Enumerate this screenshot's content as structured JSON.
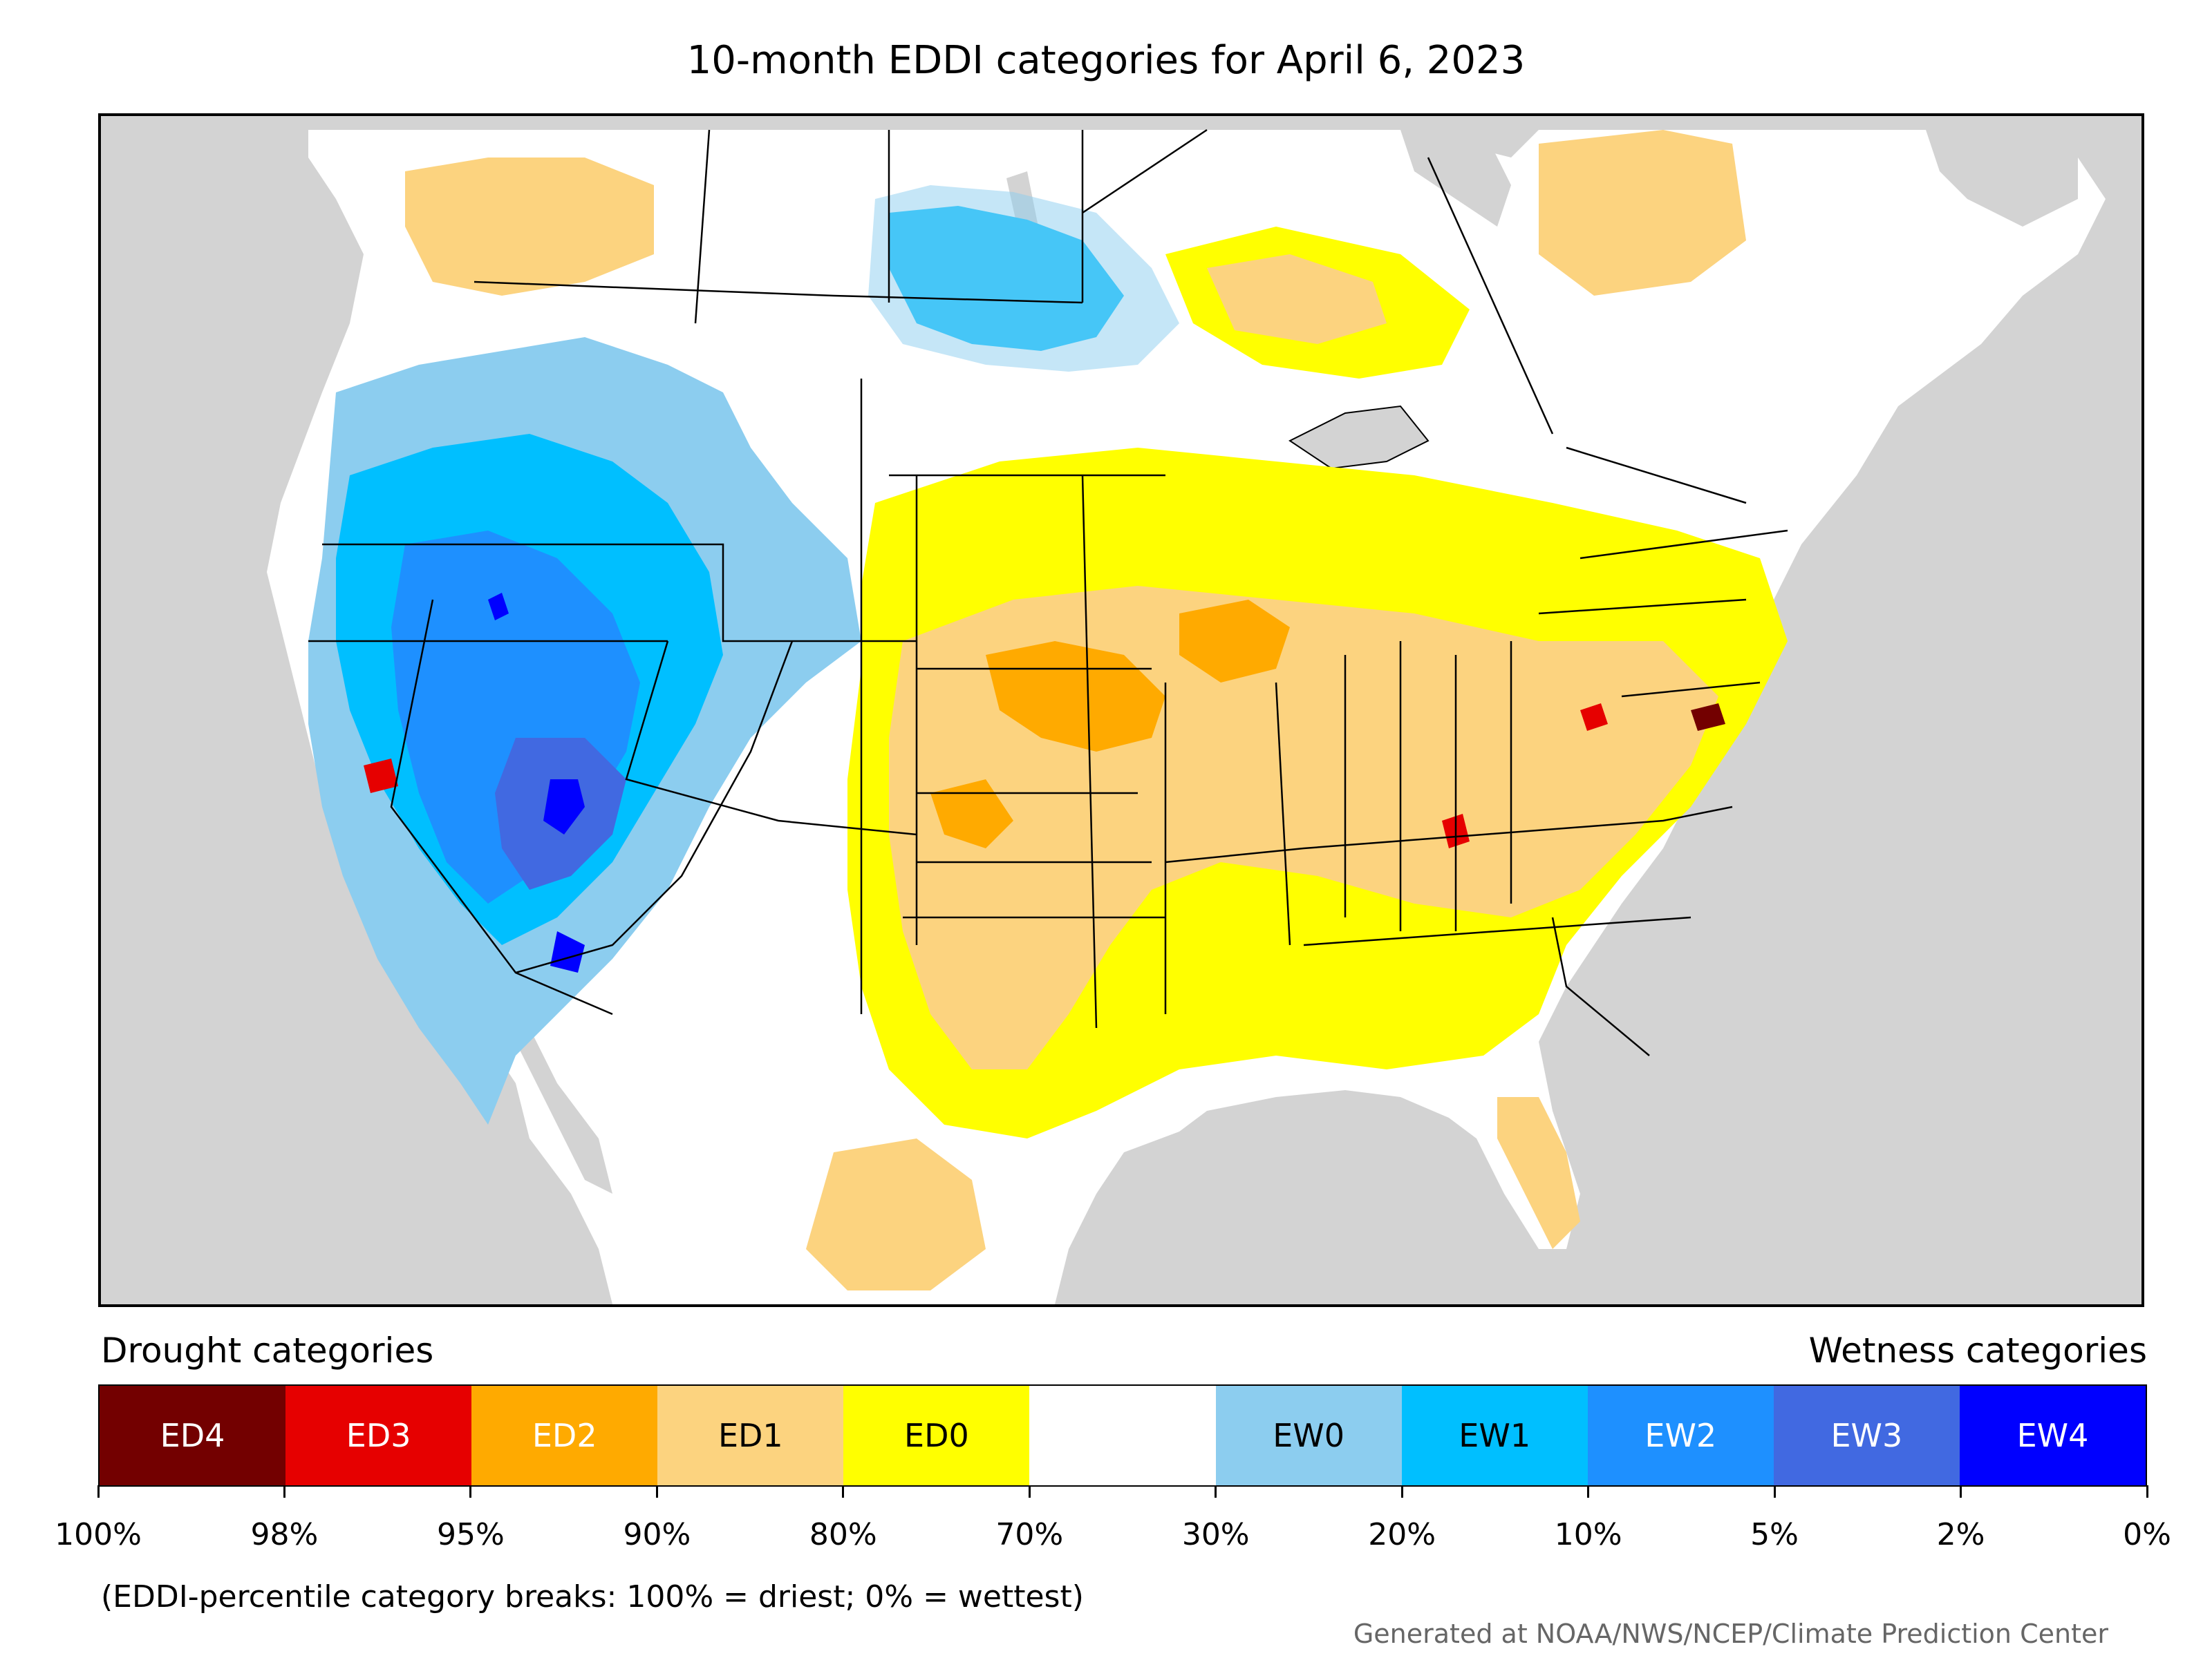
{
  "title": "10-month EDDI categories for April 6, 2023",
  "legend": {
    "drought_label": "Drought categories",
    "wetness_label": "Wetness categories",
    "categories": [
      {
        "label": "ED4",
        "color": "#730000",
        "text_color": "#ffffff"
      },
      {
        "label": "ED3",
        "color": "#e60000",
        "text_color": "#ffffff"
      },
      {
        "label": "ED2",
        "color": "#ffaa00",
        "text_color": "#ffffff"
      },
      {
        "label": "ED1",
        "color": "#fcd37f",
        "text_color": "#000000"
      },
      {
        "label": "ED0",
        "color": "#ffff00",
        "text_color": "#000000"
      },
      {
        "label": "",
        "color": "#ffffff",
        "text_color": "#000000"
      },
      {
        "label": "EW0",
        "color": "#8ccdef",
        "text_color": "#000000"
      },
      {
        "label": "EW1",
        "color": "#00bfff",
        "text_color": "#000000"
      },
      {
        "label": "EW2",
        "color": "#1e90ff",
        "text_color": "#ffffff"
      },
      {
        "label": "EW3",
        "color": "#4169e1",
        "text_color": "#ffffff"
      },
      {
        "label": "EW4",
        "color": "#0000ff",
        "text_color": "#ffffff"
      }
    ],
    "ticks": [
      "100%",
      "98%",
      "95%",
      "90%",
      "80%",
      "70%",
      "30%",
      "20%",
      "10%",
      "5%",
      "2%",
      "0%"
    ]
  },
  "footnote": "(EDDI-percentile category breaks: 100% = driest; 0% = wettest)",
  "credit": "Generated at NOAA/NWS/NCEP/Climate Prediction Center",
  "map_colors": {
    "ocean": "#d3d3d3",
    "land": "#ffffff",
    "boundary": "#000000"
  }
}
